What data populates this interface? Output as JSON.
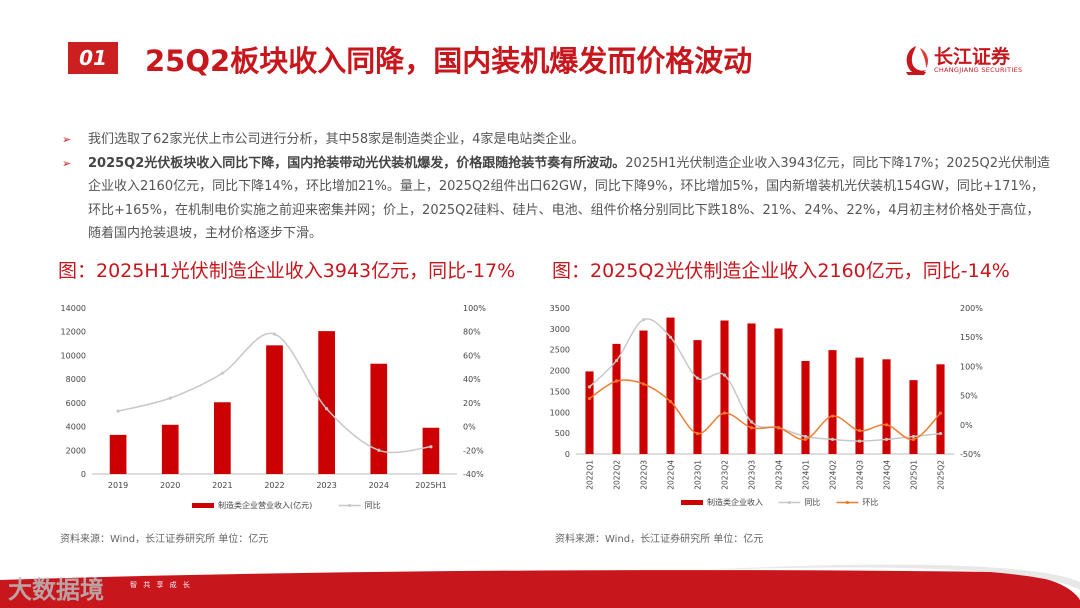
{
  "header": {
    "badge": "01",
    "title": "25Q2板块收入同降，国内装机爆发而价格波动",
    "logo_cn": "长江证券",
    "logo_en": "CHANGJIANG SECURITIES"
  },
  "bullets": [
    {
      "bold": "",
      "text": "我们选取了62家光伏上市公司进行分析，其中58家是制造类企业，4家是电站类企业。"
    },
    {
      "bold": "2025Q2光伏板块收入同比下降，国内抢装带动光伏装机爆发，价格跟随抢装节奏有所波动。",
      "text": "2025H1光伏制造企业收入3943亿元，同比下降17%；2025Q2光伏制造企业收入2160亿元，同比下降14%，环比增加21%。量上，2025Q2组件出口62GW，同比下降9%，环比增加5%，国内新增装机光伏装机154GW，同比+171%，环比+165%，在机制电价实施之前迎来密集并网；价上，2025Q2硅料、硅片、电池、组件价格分别同比下跌18%、21%、24%、22%，4月初主材价格处于高位，随着国内抢装退坡，主材价格逐步下滑。"
    }
  ],
  "captions": {
    "left": "图：2025H1光伏制造企业收入3943亿元，同比-17%",
    "right": "图：2025Q2光伏制造企业收入2160亿元，同比-14%"
  },
  "sources": {
    "left": "资料来源：Wind，长江证券研究所        单位：亿元",
    "right": "资料来源：Wind，长江证券研究所        单位：亿元"
  },
  "footer": {
    "text": "智    共 享 成 长",
    "watermark": "大数据境"
  },
  "colors": {
    "accent": "#c8161d",
    "bar": "#cc0000",
    "yoy": "#c8c8c8",
    "qoq": "#ed7d31"
  },
  "chart_data": [
    {
      "type": "bar",
      "categories": [
        "2019",
        "2020",
        "2021",
        "2022",
        "2023",
        "2024",
        "2025H1"
      ],
      "series": [
        {
          "name": "制造类企业营业收入(亿元)",
          "values": [
            3300,
            4150,
            6050,
            10850,
            12050,
            9300,
            3900
          ],
          "axis": "left"
        },
        {
          "name": "同比",
          "values": [
            13,
            24,
            45,
            78,
            15,
            -20,
            -17
          ],
          "axis": "right",
          "kind": "line"
        }
      ],
      "ylim": [
        0,
        14000
      ],
      "yticks": [
        0,
        2000,
        4000,
        6000,
        8000,
        10000,
        12000,
        14000
      ],
      "y2lim": [
        -40,
        100
      ],
      "y2ticks": [
        "-40%",
        "-20%",
        "0%",
        "20%",
        "40%",
        "60%",
        "80%",
        "100%"
      ],
      "legend": "bottom"
    },
    {
      "type": "bar",
      "categories": [
        "2022Q1",
        "2022Q2",
        "2022Q3",
        "2022Q4",
        "2023Q1",
        "2023Q2",
        "2023Q3",
        "2023Q4",
        "2024Q1",
        "2024Q2",
        "2024Q3",
        "2024Q4",
        "2025Q1",
        "2025Q2"
      ],
      "series": [
        {
          "name": "制造类企业收入",
          "values": [
            1980,
            2640,
            2960,
            3270,
            2730,
            3200,
            3130,
            3010,
            2230,
            2490,
            2310,
            2270,
            1770,
            2150
          ],
          "axis": "left"
        },
        {
          "name": "同比",
          "values": [
            65,
            110,
            180,
            150,
            80,
            85,
            5,
            -5,
            -20,
            -25,
            -28,
            -25,
            -20,
            -15
          ],
          "axis": "right",
          "kind": "line"
        },
        {
          "name": "环比",
          "values": [
            45,
            75,
            70,
            40,
            -15,
            20,
            -5,
            -5,
            -25,
            15,
            -10,
            0,
            -25,
            20
          ],
          "axis": "right",
          "kind": "line"
        }
      ],
      "ylim": [
        0,
        3500
      ],
      "yticks": [
        0,
        500,
        1000,
        1500,
        2000,
        2500,
        3000,
        3500
      ],
      "y2lim": [
        -50,
        200
      ],
      "y2ticks": [
        "-50%",
        "0%",
        "50%",
        "100%",
        "150%",
        "200%"
      ],
      "legend": "bottom"
    }
  ]
}
